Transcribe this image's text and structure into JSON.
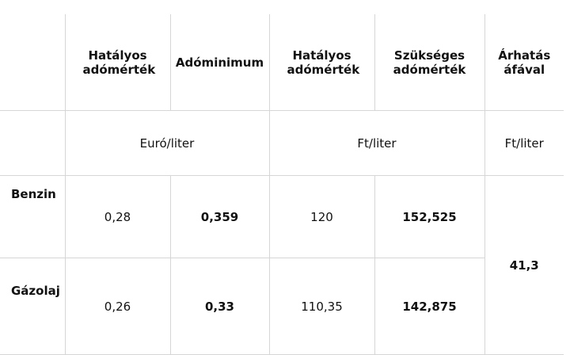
{
  "table": {
    "header": [
      "Hatályos adómérték",
      "Adóminimum",
      "Hatályos adómérték",
      "Szükséges adómérték",
      "Árhatás áfával"
    ],
    "units": [
      "Euró/liter",
      "Ft/liter",
      "Ft/liter"
    ],
    "rows": [
      {
        "label": "Benzin",
        "cells": [
          "0,28",
          "0,359",
          "120",
          "152,525"
        ]
      },
      {
        "label": "Gázolaj",
        "cells": [
          "0,26",
          "0,33",
          "110,35",
          "142,875"
        ]
      }
    ],
    "shared": "41,3"
  }
}
